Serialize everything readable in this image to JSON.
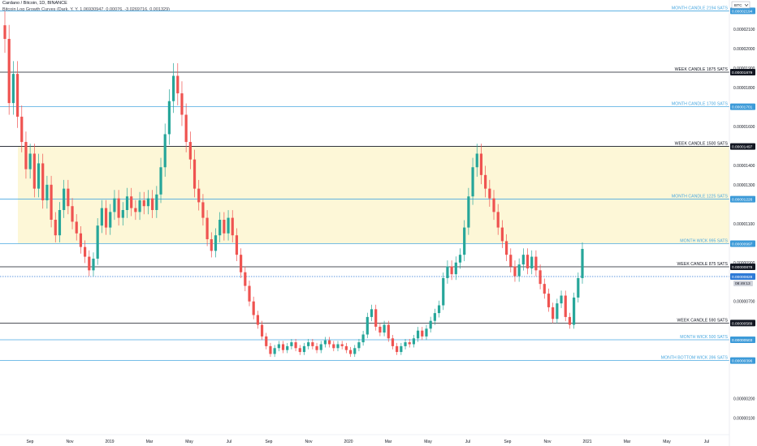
{
  "header": {
    "title": "Cardano / Bitcoin, 1D, BINANCE",
    "indicator": "Bitcoin Log Growth Curves (Dark, Y, Y, 1.06930947, 0.00076, -3.0269716, 0.001329)"
  },
  "currency_badge": "BTC",
  "colors": {
    "weekly": "#131722",
    "monthly": "#4aa8e0",
    "zone": "#fdf7d7",
    "candle_up": "#26a69a",
    "candle_down": "#ef5350",
    "current": "#2e7ad6"
  },
  "chart_data": {
    "type": "candlestick",
    "title": "Cardano / Bitcoin, 1D, BINANCE",
    "ylim": [
      1.5e-07,
      2.25e-05
    ],
    "x_ticks": [
      "Sep",
      "Nov",
      "2019",
      "Mar",
      "May",
      "Jul",
      "Sep",
      "Nov",
      "2020",
      "Mar",
      "May",
      "Jul",
      "Sep",
      "Nov",
      "2021",
      "Mar",
      "May",
      "Jul"
    ],
    "y_ticks": [
      "0.00002100",
      "0.00002000",
      "0.00001900",
      "0.00001800",
      "0.00001600",
      "0.00001400",
      "0.00001300",
      "0.00001100",
      "0.00000900",
      "0.00000700",
      "0.00000400",
      "0.00000200",
      "0.00000100"
    ],
    "levels": [
      {
        "label": "MONTH CANDLE 2194 SATS",
        "kind": "month",
        "value": 2.194e-05,
        "badge": "0.00002194"
      },
      {
        "label": "WEEK CANDLE 1875 SATS",
        "kind": "week",
        "value": 1.879e-05,
        "badge": "0.00001879"
      },
      {
        "label": "MONTH CANDLE 1700 SATS",
        "kind": "month",
        "value": 1.701e-05,
        "badge": "0.00001701"
      },
      {
        "label": "WEEK CANDLE 1500 SATS",
        "kind": "week",
        "value": 1.497e-05,
        "badge": "0.00001497"
      },
      {
        "label": "MONTH CANDLE 1225 SATS",
        "kind": "month",
        "value": 1.226e-05,
        "badge": "0.00001226"
      },
      {
        "label": "MONTH WICK 995 SATS",
        "kind": "month",
        "value": 9.97e-06,
        "badge": "0.00000997"
      },
      {
        "label": "WEEK CANDLE 875 SATS",
        "kind": "week",
        "value": 8.78e-06,
        "badge": "0.00000878"
      },
      {
        "label": "WEEK CANDLE 590 SATS",
        "kind": "week",
        "value": 5.89e-06,
        "badge": "0.00000589"
      },
      {
        "label": "MONTH WICK 500 SATS",
        "kind": "month",
        "value": 5.03e-06,
        "badge": "0.00000503"
      },
      {
        "label": "MONTH BOTTOM WICK 396 SATS",
        "kind": "month",
        "value": 3.96e-06,
        "badge": "0.00000396"
      }
    ],
    "zone": {
      "from": 9.97e-06,
      "to": 1.497e-05
    },
    "current_price": {
      "value": 8.28e-06,
      "badge": "0.00000828",
      "countdown": "08:49:13"
    },
    "series": [
      {
        "values": [
          [
            2.12e-05,
            2.05e-05
          ],
          [
            2.05e-05,
            1.72e-05
          ],
          [
            1.72e-05,
            1.87e-05
          ],
          [
            1.87e-05,
            1.65e-05
          ],
          [
            1.65e-05,
            1.52e-05
          ],
          [
            1.52e-05,
            1.38e-05
          ],
          [
            1.38e-05,
            1.46e-05
          ],
          [
            1.46e-05,
            1.28e-05
          ],
          [
            1.28e-05,
            1.41e-05
          ],
          [
            1.41e-05,
            1.22e-05
          ],
          [
            1.22e-05,
            1.3e-05
          ],
          [
            1.3e-05,
            1.12e-05
          ],
          [
            1.12e-05,
            1.04e-05
          ],
          [
            1.04e-05,
            1.17e-05
          ],
          [
            1.17e-05,
            1.28e-05
          ],
          [
            1.28e-05,
            1.19e-05
          ],
          [
            1.19e-05,
            1.11e-05
          ],
          [
            1.11e-05,
            1.05e-05
          ],
          [
            1.05e-05,
            9.8e-06
          ],
          [
            9.8e-06,
            9.3e-06
          ],
          [
            9.3e-06,
            8.6e-06
          ],
          [
            8.6e-06,
            9.2e-06
          ],
          [
            9.2e-06,
            1.09e-05
          ],
          [
            1.09e-05,
            1.18e-05
          ],
          [
            1.18e-05,
            1.08e-05
          ],
          [
            1.08e-05,
            1.16e-05
          ],
          [
            1.16e-05,
            1.23e-05
          ],
          [
            1.23e-05,
            1.13e-05
          ],
          [
            1.13e-05,
            1.17e-05
          ],
          [
            1.17e-05,
            1.24e-05
          ],
          [
            1.24e-05,
            1.18e-05
          ],
          [
            1.18e-05,
            1.16e-05
          ],
          [
            1.16e-05,
            1.22e-05
          ],
          [
            1.22e-05,
            1.19e-05
          ],
          [
            1.19e-05,
            1.23e-05
          ],
          [
            1.23e-05,
            1.17e-05
          ],
          [
            1.17e-05,
            1.25e-05
          ],
          [
            1.25e-05,
            1.39e-05
          ],
          [
            1.39e-05,
            1.56e-05
          ],
          [
            1.56e-05,
            1.73e-05
          ],
          [
            1.73e-05,
            1.86e-05
          ],
          [
            1.86e-05,
            1.77e-05
          ],
          [
            1.77e-05,
            1.66e-05
          ],
          [
            1.66e-05,
            1.52e-05
          ],
          [
            1.52e-05,
            1.43e-05
          ],
          [
            1.43e-05,
            1.28e-05
          ],
          [
            1.28e-05,
            1.21e-05
          ],
          [
            1.21e-05,
            1.13e-05
          ],
          [
            1.13e-05,
            1.02e-05
          ],
          [
            1.02e-05,
            9.6e-06
          ],
          [
            9.6e-06,
            1.04e-05
          ],
          [
            1.04e-05,
            1.12e-05
          ],
          [
            1.12e-05,
            1.05e-05
          ],
          [
            1.05e-05,
            1.13e-05
          ],
          [
            1.13e-05,
            1.04e-05
          ],
          [
            1.04e-05,
            9.4e-06
          ],
          [
            9.4e-06,
            8.5e-06
          ],
          [
            8.5e-06,
            7.8e-06
          ],
          [
            7.8e-06,
            7e-06
          ],
          [
            7e-06,
            6.3e-06
          ],
          [
            6.3e-06,
            5.8e-06
          ],
          [
            5.8e-06,
            5.2e-06
          ],
          [
            5.2e-06,
            4.7e-06
          ],
          [
            4.7e-06,
            4.3e-06
          ],
          [
            4.3e-06,
            4.6e-06
          ],
          [
            4.6e-06,
            4.8e-06
          ],
          [
            4.8e-06,
            4.5e-06
          ],
          [
            4.5e-06,
            4.7e-06
          ],
          [
            4.7e-06,
            4.9e-06
          ],
          [
            4.9e-06,
            4.6e-06
          ],
          [
            4.6e-06,
            4.4e-06
          ],
          [
            4.4e-06,
            4.7e-06
          ],
          [
            4.7e-06,
            4.9e-06
          ],
          [
            4.9e-06,
            4.7e-06
          ],
          [
            4.7e-06,
            4.5e-06
          ],
          [
            4.5e-06,
            4.8e-06
          ],
          [
            4.8e-06,
            5e-06
          ],
          [
            5e-06,
            4.8e-06
          ],
          [
            4.8e-06,
            4.6e-06
          ],
          [
            4.6e-06,
            4.8e-06
          ],
          [
            4.8e-06,
            4.7e-06
          ],
          [
            4.7e-06,
            4.5e-06
          ],
          [
            4.5e-06,
            4.3e-06
          ],
          [
            4.3e-06,
            4.6e-06
          ],
          [
            4.6e-06,
            4.9e-06
          ],
          [
            4.9e-06,
            5.3e-06
          ],
          [
            5.3e-06,
            6.2e-06
          ],
          [
            6.2e-06,
            6.6e-06
          ],
          [
            6.6e-06,
            5.7e-06
          ],
          [
            5.7e-06,
            5.4e-06
          ],
          [
            5.4e-06,
            5.8e-06
          ],
          [
            5.8e-06,
            5.1e-06
          ],
          [
            5.1e-06,
            4.7e-06
          ],
          [
            4.7e-06,
            4.4e-06
          ],
          [
            4.4e-06,
            4.7e-06
          ],
          [
            4.7e-06,
            4.9e-06
          ],
          [
            4.9e-06,
            4.8e-06
          ],
          [
            4.8e-06,
            5.1e-06
          ],
          [
            5.1e-06,
            5.5e-06
          ],
          [
            5.5e-06,
            5.2e-06
          ],
          [
            5.2e-06,
            5.6e-06
          ],
          [
            5.6e-06,
            6e-06
          ],
          [
            6e-06,
            6.4e-06
          ],
          [
            6.4e-06,
            6.8e-06
          ],
          [
            6.8e-06,
            8.2e-06
          ],
          [
            8.2e-06,
            8.8e-06
          ],
          [
            8.8e-06,
            8.4e-06
          ],
          [
            8.4e-06,
            9e-06
          ],
          [
            9e-06,
            9.4e-06
          ],
          [
            9.4e-06,
            1.08e-05
          ],
          [
            1.08e-05,
            1.24e-05
          ],
          [
            1.24e-05,
            1.39e-05
          ],
          [
            1.39e-05,
            1.46e-05
          ],
          [
            1.46e-05,
            1.35e-05
          ],
          [
            1.35e-05,
            1.28e-05
          ],
          [
            1.28e-05,
            1.23e-05
          ],
          [
            1.23e-05,
            1.16e-05
          ],
          [
            1.16e-05,
            1.08e-05
          ],
          [
            1.08e-05,
            1.01e-05
          ],
          [
            1.01e-05,
            9.4e-06
          ],
          [
            9.4e-06,
            8.8e-06
          ],
          [
            8.8e-06,
            8.3e-06
          ],
          [
            8.3e-06,
            8.9e-06
          ],
          [
            8.9e-06,
            9.4e-06
          ],
          [
            9.4e-06,
            8.7e-06
          ],
          [
            8.7e-06,
            9.3e-06
          ],
          [
            9.3e-06,
            8.6e-06
          ],
          [
            8.6e-06,
            7.9e-06
          ],
          [
            7.9e-06,
            7.4e-06
          ],
          [
            7.4e-06,
            6.7e-06
          ],
          [
            6.7e-06,
            6.1e-06
          ],
          [
            6.1e-06,
            6.9e-06
          ],
          [
            6.9e-06,
            7.3e-06
          ],
          [
            7.3e-06,
            6.2e-06
          ],
          [
            6.2e-06,
            5.8e-06
          ],
          [
            5.8e-06,
            7.2e-06
          ],
          [
            7.2e-06,
            8.2e-06
          ],
          [
            8.2e-06,
            9.7e-06
          ]
        ]
      }
    ]
  }
}
